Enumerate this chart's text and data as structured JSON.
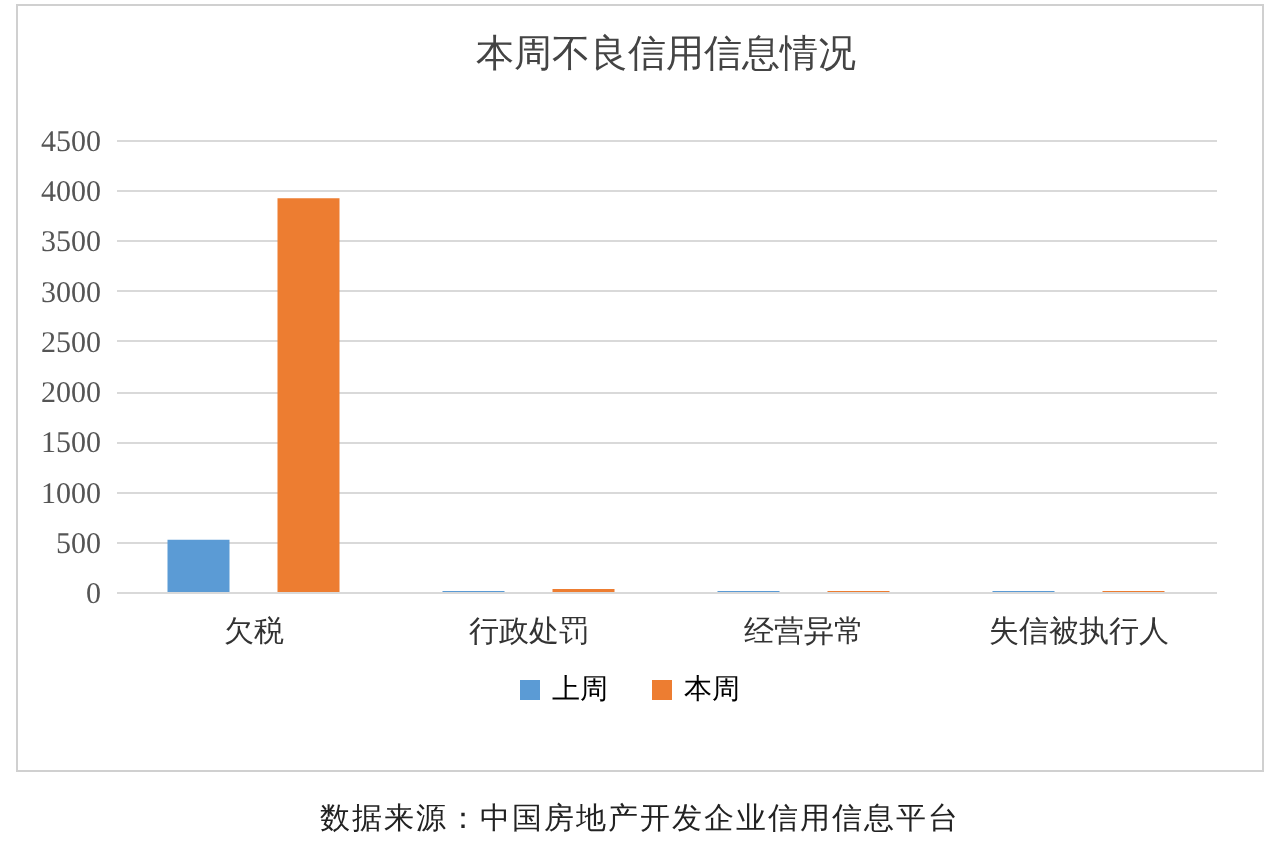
{
  "chart_data": {
    "type": "bar",
    "title": "本周不良信用信息情况",
    "categories": [
      "欠税",
      "行政处罚",
      "经营异常",
      "失信被执行人"
    ],
    "series": [
      {
        "name": "上周",
        "color": "#5b9bd5",
        "values": [
          520,
          10,
          10,
          10
        ]
      },
      {
        "name": "本周",
        "color": "#ed7d31",
        "values": [
          3920,
          30,
          10,
          10
        ]
      }
    ],
    "ylim": [
      0,
      4500
    ],
    "yticks": [
      0,
      500,
      1000,
      1500,
      2000,
      2500,
      3000,
      3500,
      4000,
      4500
    ],
    "grid": "y",
    "legend": "bottom",
    "annotations": [
      "数据来源：中国房地产开发企业信用信息平台"
    ]
  }
}
